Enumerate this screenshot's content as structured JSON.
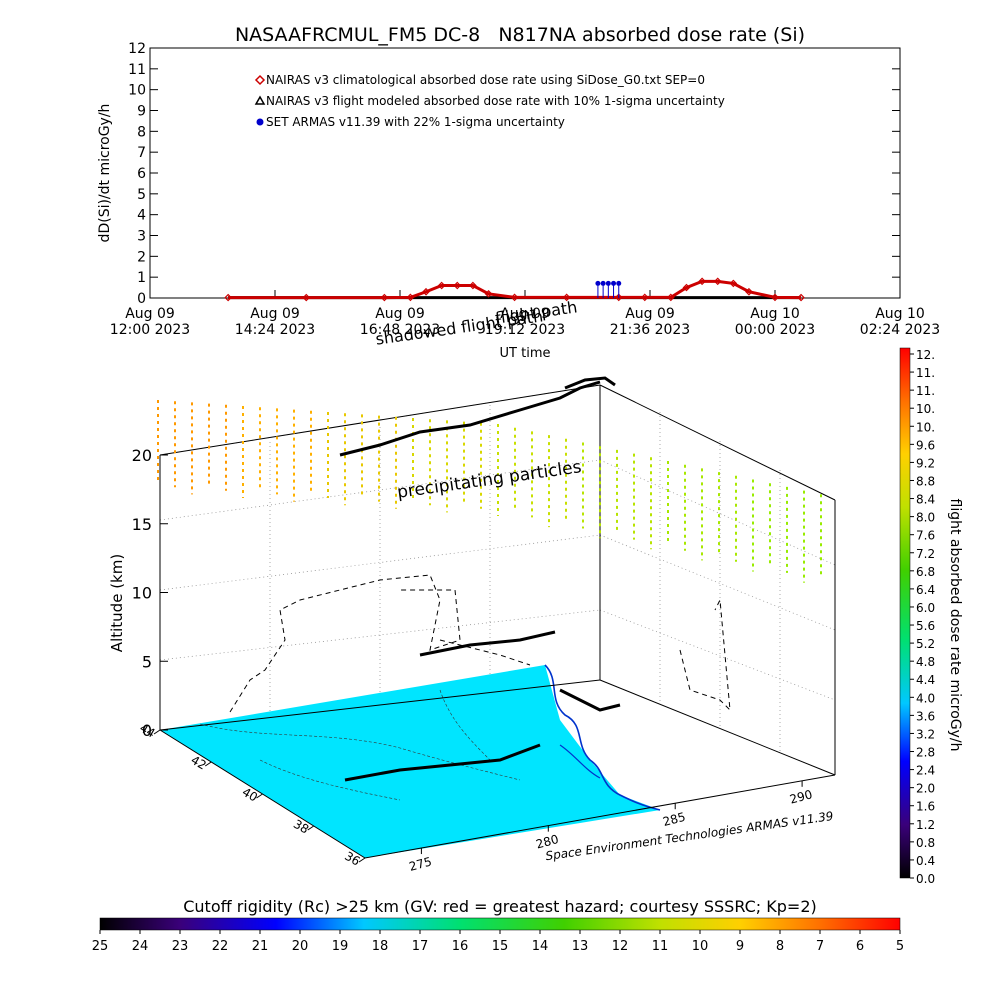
{
  "title": "NASAAFRCMUL_FM5 DC-8   N817NA absorbed dose rate (Si)",
  "top_chart": {
    "ylabel": "dD(Si)/dt microGy/h",
    "xlabel": "UT time",
    "yticks": [
      "0",
      "1",
      "2",
      "3",
      "4",
      "5",
      "6",
      "7",
      "8",
      "9",
      "10",
      "11",
      "12"
    ],
    "xticks": [
      {
        "l1": "Aug 09",
        "l2": "12:00 2023"
      },
      {
        "l1": "Aug 09",
        "l2": "14:24 2023"
      },
      {
        "l1": "Aug 09",
        "l2": "16:48 2023"
      },
      {
        "l1": "Aug 09",
        "l2": "19:12 2023"
      },
      {
        "l1": "Aug 09",
        "l2": "21:36 2023"
      },
      {
        "l1": "Aug 10",
        "l2": "00:00 2023"
      },
      {
        "l1": "Aug 10",
        "l2": "02:24 2023"
      }
    ],
    "legend": [
      {
        "label": "NAIRAS v3 climatological absorbed dose rate using SiDose_G0.txt SEP=0",
        "color": "#cc0000",
        "marker": "diamond"
      },
      {
        "label": "NAIRAS v3 flight modeled absorbed dose rate with 10% 1-sigma uncertainty",
        "color": "#000000",
        "marker": "triangle"
      },
      {
        "label": "SET ARMAS v11.39 with 22% 1-sigma uncertainty",
        "color": "#0000cc",
        "marker": "dot"
      }
    ]
  },
  "chart_data": [
    {
      "type": "line",
      "title": "NASAAFRCMUL_FM5 DC-8   N817NA absorbed dose rate (Si)",
      "xlabel": "UT time",
      "ylabel": "dD(Si)/dt microGy/h",
      "x_unit": "hours since Aug 09 12:00 2023",
      "xlim": [
        0,
        14.4
      ],
      "ylim": [
        0,
        12
      ],
      "series": [
        {
          "name": "NAIRAS v3 climatological absorbed dose rate using SiDose_G0.txt SEP=0",
          "x": [
            1.5,
            3.0,
            4.5,
            5.0,
            5.3,
            5.6,
            5.9,
            6.2,
            6.5,
            7.0,
            8.0,
            9.0,
            9.5,
            10.0,
            10.3,
            10.6,
            10.9,
            11.2,
            11.5,
            12.0,
            12.5
          ],
          "values": [
            0.02,
            0.02,
            0.02,
            0.03,
            0.3,
            0.6,
            0.6,
            0.6,
            0.2,
            0.03,
            0.03,
            0.03,
            0.03,
            0.03,
            0.5,
            0.8,
            0.8,
            0.7,
            0.3,
            0.03,
            0.02
          ]
        },
        {
          "name": "NAIRAS v3 flight modeled absorbed dose rate with 10% 1-sigma uncertainty",
          "x": [
            1.5,
            12.5
          ],
          "values": [
            0.02,
            0.02
          ]
        },
        {
          "name": "SET ARMAS v11.39 with 22% 1-sigma uncertainty",
          "x": [
            8.6,
            8.7,
            8.8,
            8.9,
            9.0
          ],
          "values": [
            0.7,
            0.7,
            0.7,
            0.7,
            0.7
          ]
        }
      ]
    }
  ],
  "plot3d": {
    "ylabel": "Altitude (km)",
    "alt_ticks": [
      "0",
      "5",
      "10",
      "15",
      "20"
    ],
    "lat_ticks": [
      "44",
      "42",
      "40",
      "38",
      "36"
    ],
    "lon_ticks": [
      "275",
      "280",
      "285",
      "290"
    ],
    "annotations": [
      "flight path",
      "shadowed flight path",
      "precipitating particles"
    ],
    "credit": "Space Environment Technologies ARMAS v11.39"
  },
  "colorbar_right": {
    "label": "flight absorbed dose rate microGy/h",
    "ticks": [
      "12.",
      "11.",
      "11.",
      "10.",
      "10.",
      "9.6",
      "9.2",
      "8.8",
      "8.4",
      "8.0",
      "7.6",
      "7.2",
      "6.8",
      "6.4",
      "6.0",
      "5.6",
      "5.2",
      "4.8",
      "4.4",
      "4.0",
      "3.6",
      "3.2",
      "2.8",
      "2.4",
      "2.0",
      "1.6",
      "1.2",
      "0.8",
      "0.4",
      "0.0"
    ]
  },
  "colorbar_bottom": {
    "title": "Cutoff rigidity (Rc) >25 km (GV: red = greatest hazard; courtesy SSSRC; Kp=2)",
    "ticks": [
      "25",
      "24",
      "23",
      "22",
      "21",
      "20",
      "19",
      "18",
      "17",
      "16",
      "15",
      "14",
      "13",
      "12",
      "11",
      "10",
      "9",
      "8",
      "7",
      "6",
      "5"
    ]
  },
  "colors": {
    "nairas_clim": "#cc0000",
    "nairas_flight": "#000000",
    "armas": "#0000cc",
    "land": "#00e5ff"
  }
}
